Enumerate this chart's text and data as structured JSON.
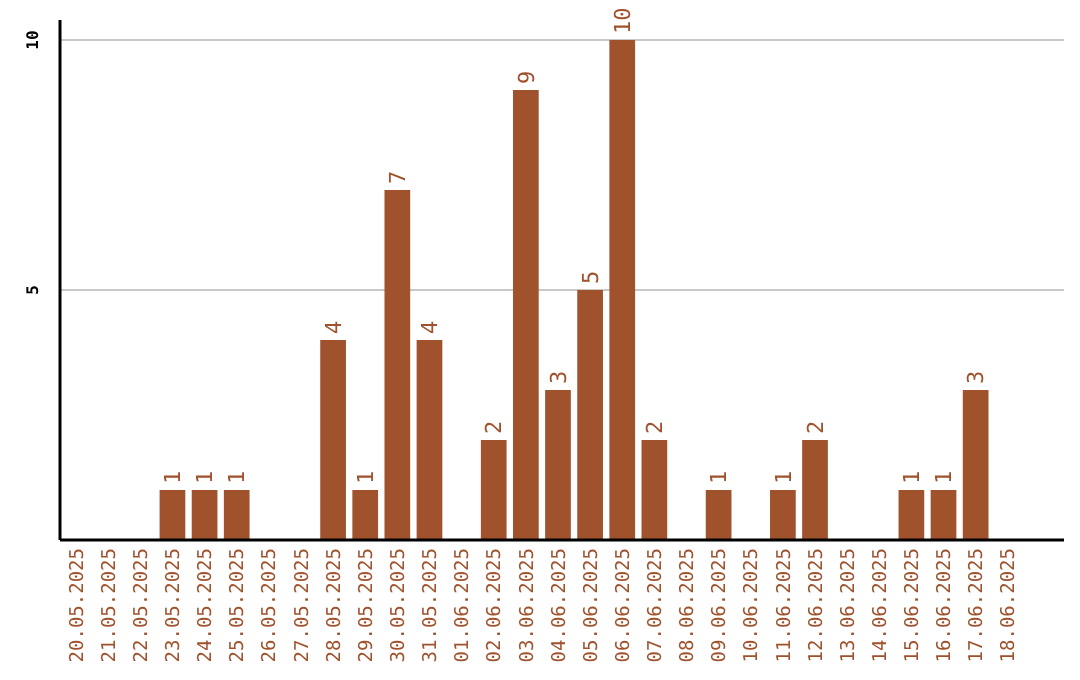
{
  "chart_data": {
    "type": "bar",
    "categories": [
      "20.05.2025",
      "21.05.2025",
      "22.05.2025",
      "23.05.2025",
      "24.05.2025",
      "25.05.2025",
      "26.05.2025",
      "27.05.2025",
      "28.05.2025",
      "29.05.2025",
      "30.05.2025",
      "31.05.2025",
      "01.06.2025",
      "02.06.2025",
      "03.06.2025",
      "04.06.2025",
      "05.06.2025",
      "06.06.2025",
      "07.06.2025",
      "08.06.2025",
      "09.06.2025",
      "10.06.2025",
      "11.06.2025",
      "12.06.2025",
      "13.06.2025",
      "14.06.2025",
      "15.06.2025",
      "16.06.2025",
      "17.06.2025",
      "18.06.2025"
    ],
    "values": [
      0,
      0,
      0,
      1,
      1,
      1,
      0,
      0,
      4,
      1,
      7,
      4,
      0,
      2,
      9,
      3,
      5,
      10,
      2,
      0,
      1,
      0,
      1,
      2,
      0,
      0,
      1,
      1,
      3,
      0
    ],
    "value_labels": [
      null,
      null,
      null,
      "1",
      "1",
      "1",
      null,
      null,
      "4",
      "1",
      "7",
      "4",
      null,
      "2",
      "9",
      "3",
      "5",
      "10",
      "2",
      null,
      "1",
      null,
      "1",
      "2",
      null,
      null,
      "1",
      "1",
      "3",
      null
    ],
    "color": "#a0522d",
    "ylim": [
      0,
      10.4
    ],
    "yticks": [
      5,
      10
    ],
    "grid": "y"
  }
}
